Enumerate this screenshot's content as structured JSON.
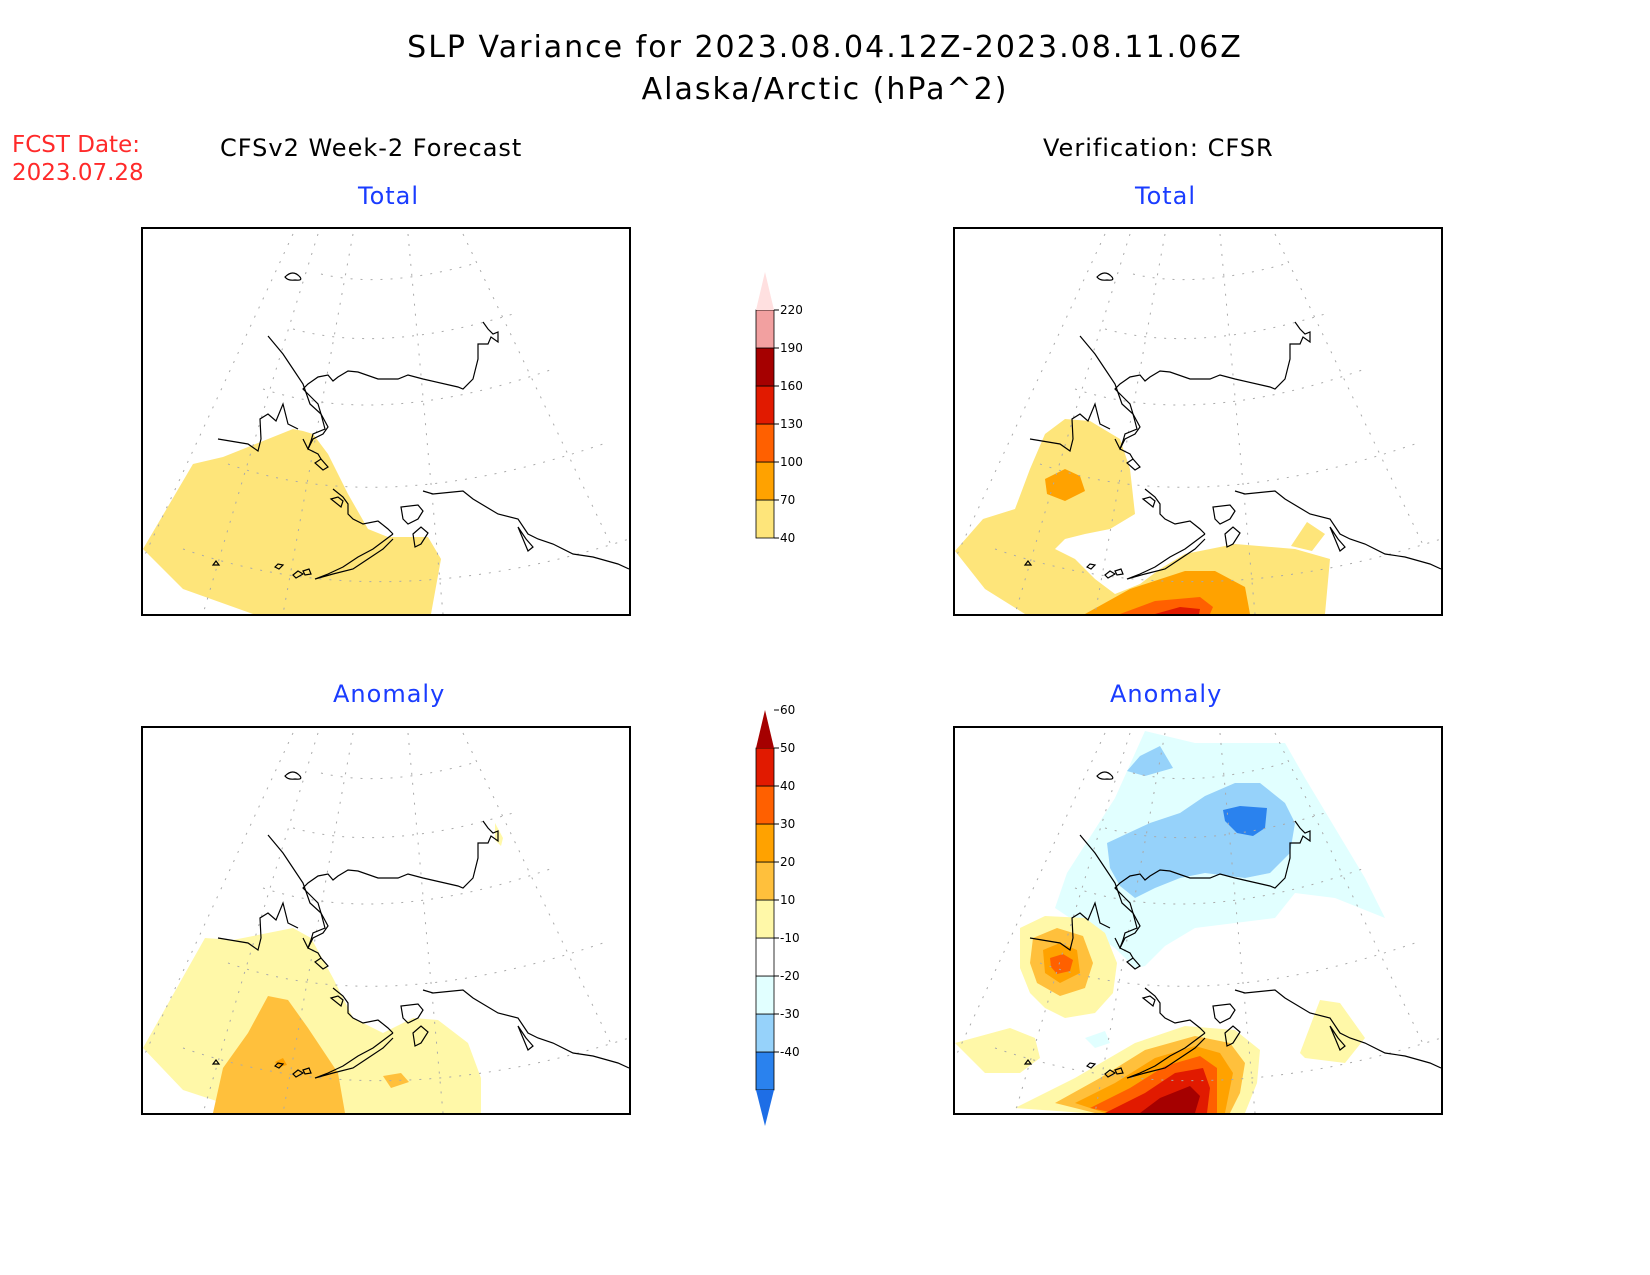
{
  "header": {
    "title_line1": "SLP Variance for 2023.08.04.12Z-2023.08.11.06Z",
    "title_line2": "Alaska/Arctic (hPa^2)"
  },
  "forecast_date": {
    "label": "FCST Date:",
    "value": "2023.07.28"
  },
  "columns": {
    "left": "CFSv2 Week-2 Forecast",
    "right": "Verification: CFSR"
  },
  "panels": {
    "forecast_total": {
      "label": "Total"
    },
    "verification_total": {
      "label": "Total"
    },
    "forecast_anomaly": {
      "label": "Anomaly"
    },
    "verification_anomaly": {
      "label": "Anomaly"
    }
  },
  "colorbars": {
    "total": {
      "levels": [
        "40",
        "70",
        "100",
        "130",
        "160",
        "190",
        "220"
      ],
      "colors": [
        "#fee57a",
        "#ffa200",
        "#ff6000",
        "#e11a00",
        "#a50000",
        "#f2a0a0",
        "#ffe0e0"
      ]
    },
    "anomaly": {
      "levels": [
        "-40",
        "-30",
        "-20",
        "-10",
        "10",
        "20",
        "30",
        "40",
        "50",
        "60"
      ],
      "colors": [
        "#2a82ee",
        "#96d2fa",
        "#e1ffff",
        "#ffffff",
        "#fff8a8",
        "#ffc03c",
        "#ffa200",
        "#ff6000",
        "#e11a00",
        "#a50000"
      ],
      "bottom_color": "#1e6ee6"
    }
  },
  "chart_data": {
    "type": "heatmap",
    "title": "SLP Variance for 2023.08.04.12Z-2023.08.11.06Z",
    "subtitle": "Alaska/Arctic (hPa^2)",
    "units": "hPa^2",
    "panels": [
      {
        "name": "CFSv2 Week-2 Forecast - Total",
        "max_level": "40-70",
        "regions": [
          "Bering Sea / North Pacific south of Aleutians: 40-70"
        ]
      },
      {
        "name": "Verification: CFSR - Total",
        "max_level": "130-160",
        "regions": [
          "Bering Sea west: 40-70 with core 70-100",
          "Gulf of Alaska south: 40-70 through 130-160 core",
          "Southeast Alaska offshore patch: 40-70"
        ]
      },
      {
        "name": "CFSv2 Week-2 Forecast - Anomaly",
        "max_level": "30-40",
        "regions": [
          "Bering Sea / N Pacific: 10-20",
          "Aleutians: 20-30 with small 30-40 spot",
          "Gulf of Alaska: 10-20 with 20-30 spot"
        ]
      },
      {
        "name": "Verification: CFSR - Anomaly",
        "max_level": ">60",
        "regions": [
          "Arctic north of Alaska: -10 to -40 (min -30 to -40)",
          "Bering Sea west: 10 to 50 core",
          "Gulf of Alaska south: 10 to >60 core",
          "Southeast Alaska offshore: 10-20"
        ]
      }
    ],
    "total_levels": [
      40,
      70,
      100,
      130,
      160,
      190,
      220
    ],
    "anomaly_levels": [
      -40,
      -30,
      -20,
      -10,
      10,
      20,
      30,
      40,
      50,
      60
    ]
  }
}
